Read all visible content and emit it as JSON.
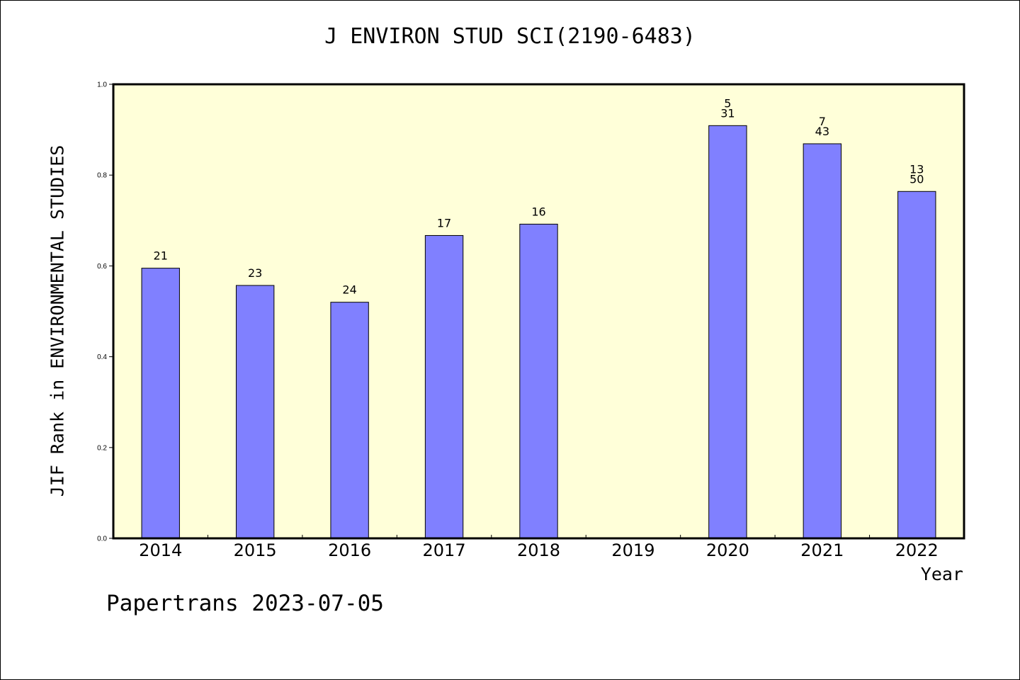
{
  "title": "J ENVIRON STUD SCI(2190-6483)",
  "footer": "Papertrans 2023-07-05",
  "chart_data": {
    "type": "bar",
    "title": "J ENVIRON STUD SCI(2190-6483)",
    "xlabel": "Year",
    "ylabel": "JIF Rank in ENVIRONMENTAL STUDIES",
    "ylim": [
      0,
      1.0
    ],
    "yticks": [
      "0.0",
      "0.2",
      "0.4",
      "0.6",
      "0.8",
      "1.0"
    ],
    "categories": [
      "2014",
      "2015",
      "2016",
      "2017",
      "2018",
      "2019",
      "2020",
      "2021",
      "2022"
    ],
    "values": [
      0.595,
      0.557,
      0.52,
      0.667,
      0.692,
      null,
      0.909,
      0.869,
      0.764
    ],
    "bar_labels": [
      [
        "21"
      ],
      [
        "23"
      ],
      [
        "24"
      ],
      [
        "17"
      ],
      [
        "16"
      ],
      [],
      [
        "5",
        "31"
      ],
      [
        "7",
        "43"
      ],
      [
        "13",
        "50"
      ]
    ],
    "colors": {
      "plot_background": "#ffffd9",
      "bar_fill": "#8080ff",
      "bar_stroke": "#000000"
    },
    "grid": false
  }
}
